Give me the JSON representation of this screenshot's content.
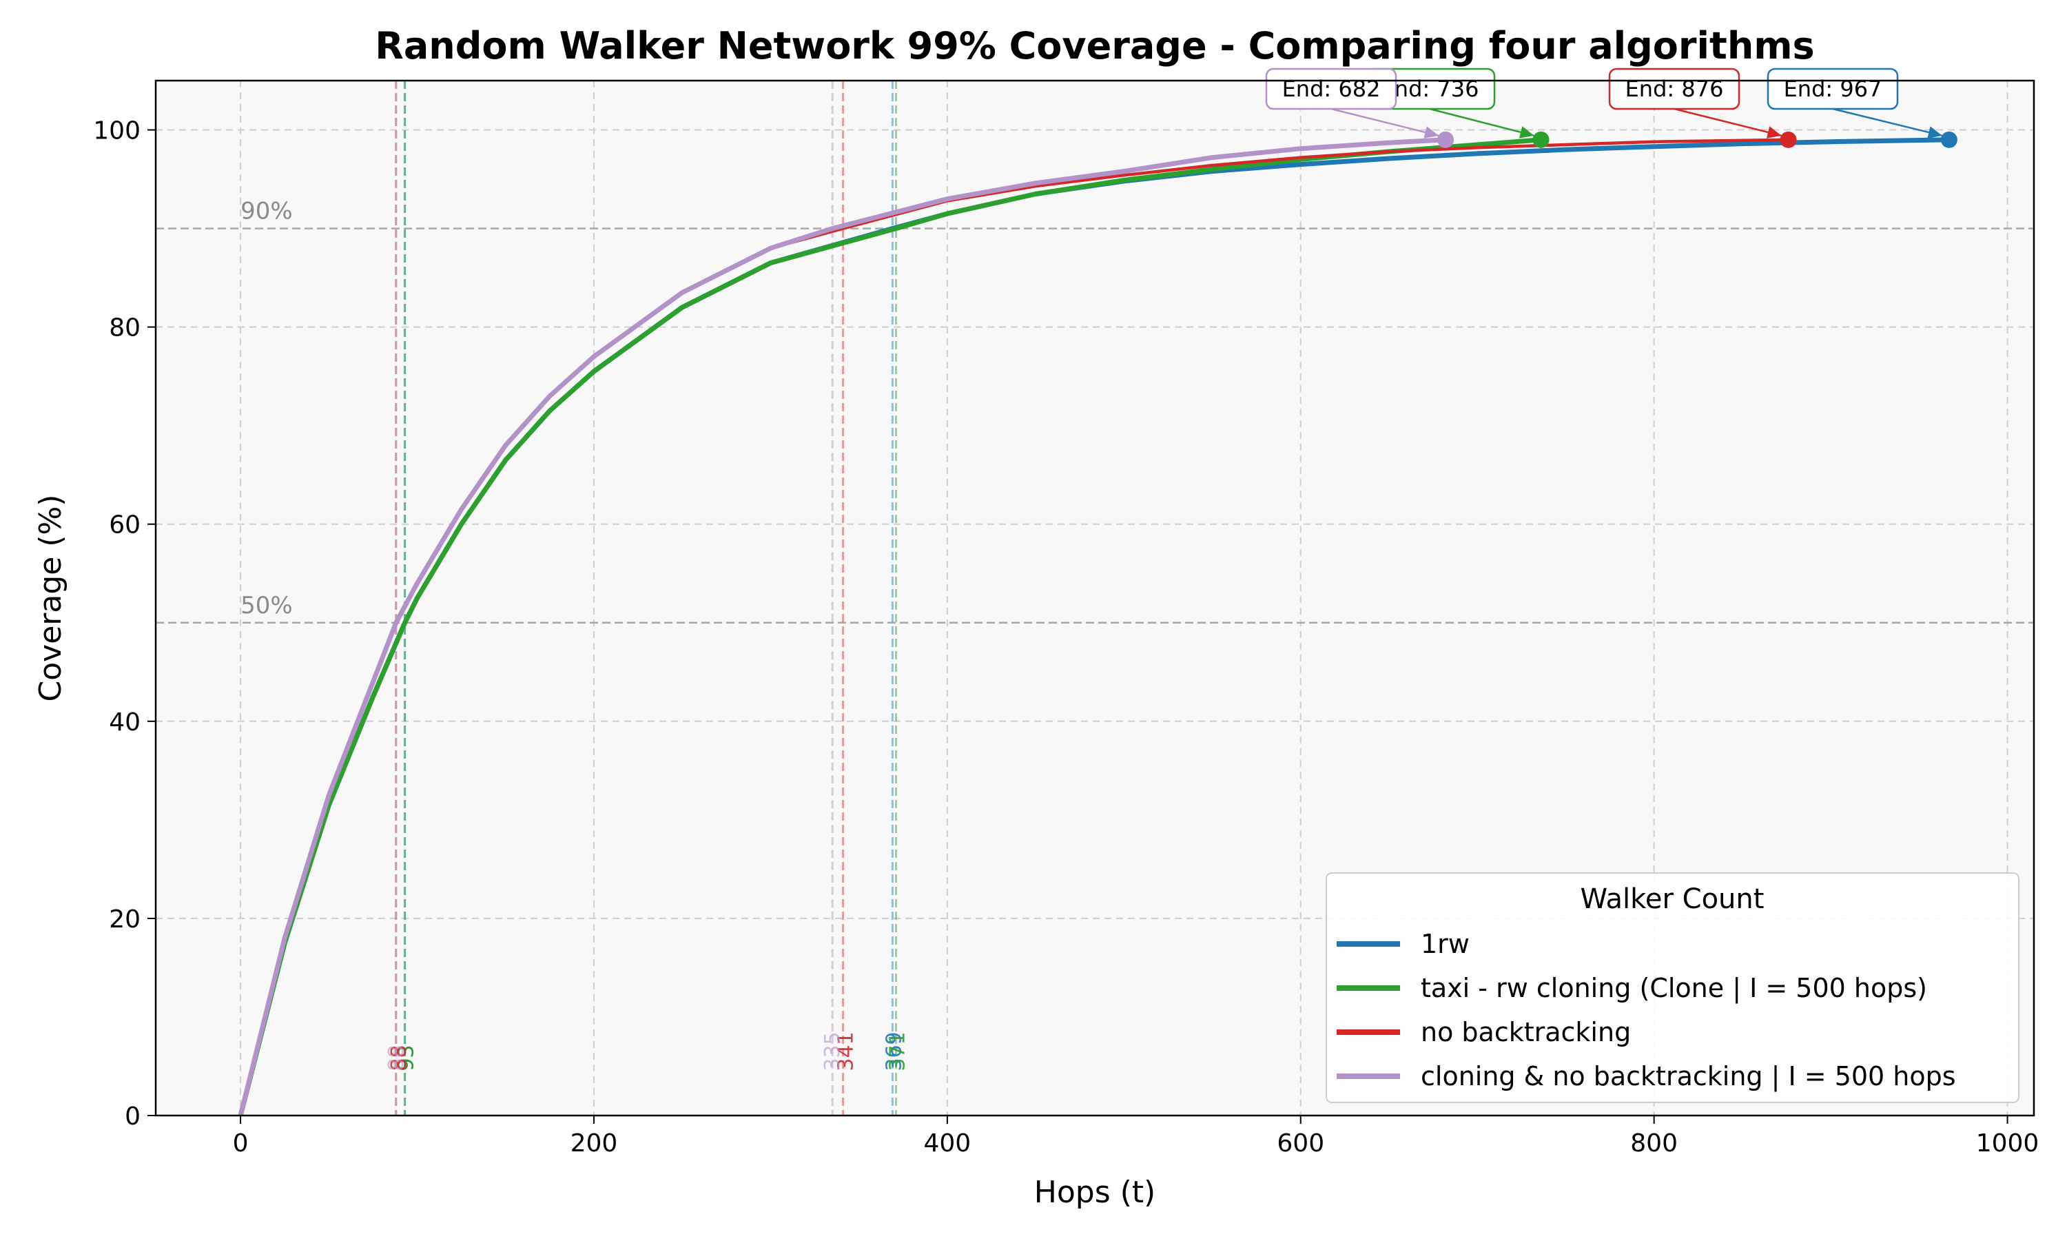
{
  "chart_data": {
    "type": "line",
    "title": "Random Walker Network 99% Coverage - Comparing four algorithms",
    "xlabel": "Hops (t)",
    "ylabel": "Coverage (%)",
    "xlim": [
      -48,
      1015
    ],
    "ylim": [
      0,
      105
    ],
    "xticks": [
      0,
      200,
      400,
      600,
      800,
      1000
    ],
    "yticks": [
      0,
      20,
      40,
      60,
      80,
      100
    ],
    "grid": true,
    "legend": {
      "title": "Walker Count",
      "position": "bottom-right"
    },
    "reference_lines": [
      {
        "y": 90,
        "label": "90%"
      },
      {
        "y": 50,
        "label": "50%"
      }
    ],
    "series": [
      {
        "name": "1rw",
        "color": "#1f77b4",
        "x": [
          0,
          25,
          50,
          75,
          93,
          100,
          125,
          150,
          175,
          200,
          250,
          300,
          369,
          400,
          450,
          500,
          550,
          600,
          650,
          700,
          750,
          800,
          850,
          900,
          967
        ],
        "y": [
          0,
          17.5,
          31.5,
          42.5,
          50,
          52.5,
          60,
          66.5,
          71.5,
          75.5,
          82,
          86.5,
          90,
          91.5,
          93.5,
          94.8,
          95.8,
          96.5,
          97.1,
          97.6,
          98.0,
          98.3,
          98.6,
          98.8,
          99.0
        ],
        "end": 967,
        "t50": 93,
        "t90": 369
      },
      {
        "name": "taxi  - rw cloning (Clone | I = 500 hops)",
        "color": "#2ca02c",
        "x": [
          0,
          25,
          50,
          75,
          93,
          100,
          125,
          150,
          175,
          200,
          250,
          300,
          371,
          400,
          450,
          500,
          550,
          600,
          650,
          700,
          736
        ],
        "y": [
          0,
          17.5,
          31.5,
          42.5,
          50,
          52.5,
          60,
          66.5,
          71.5,
          75.5,
          82,
          86.5,
          90,
          91.5,
          93.5,
          94.9,
          96.0,
          97.0,
          97.8,
          98.5,
          99.0
        ],
        "end": 736,
        "t50": 93,
        "t90": 371
      },
      {
        "name": "no backtracking",
        "color": "#d62728",
        "x": [
          0,
          25,
          50,
          75,
          88,
          100,
          125,
          150,
          175,
          200,
          250,
          300,
          341,
          400,
          450,
          500,
          550,
          600,
          650,
          700,
          750,
          800,
          876
        ],
        "y": [
          0,
          18,
          32.5,
          44,
          50,
          54,
          61.5,
          68,
          73,
          77,
          83.5,
          88,
          90,
          92.8,
          94.3,
          95.4,
          96.4,
          97.2,
          97.8,
          98.2,
          98.5,
          98.8,
          99.0
        ],
        "end": 876,
        "t50": 88,
        "t90": 341
      },
      {
        "name": "cloning & no backtracking | I = 500 hops",
        "color": "#b292c8",
        "x": [
          0,
          25,
          50,
          75,
          88,
          100,
          125,
          150,
          175,
          200,
          250,
          300,
          335,
          400,
          450,
          500,
          550,
          600,
          650,
          682
        ],
        "y": [
          0,
          18,
          32.5,
          44,
          50,
          54,
          61.5,
          68,
          73,
          77,
          83.5,
          88,
          90,
          93,
          94.6,
          95.8,
          97.2,
          98.1,
          98.7,
          99.0
        ],
        "end": 682,
        "t50": 88,
        "t90": 335
      }
    ],
    "annotations": [
      {
        "series": 0,
        "text": "End: 967"
      },
      {
        "series": 1,
        "text": "End: 736"
      },
      {
        "series": 2,
        "text": "End: 876"
      },
      {
        "series": 3,
        "text": "End: 682"
      }
    ]
  }
}
